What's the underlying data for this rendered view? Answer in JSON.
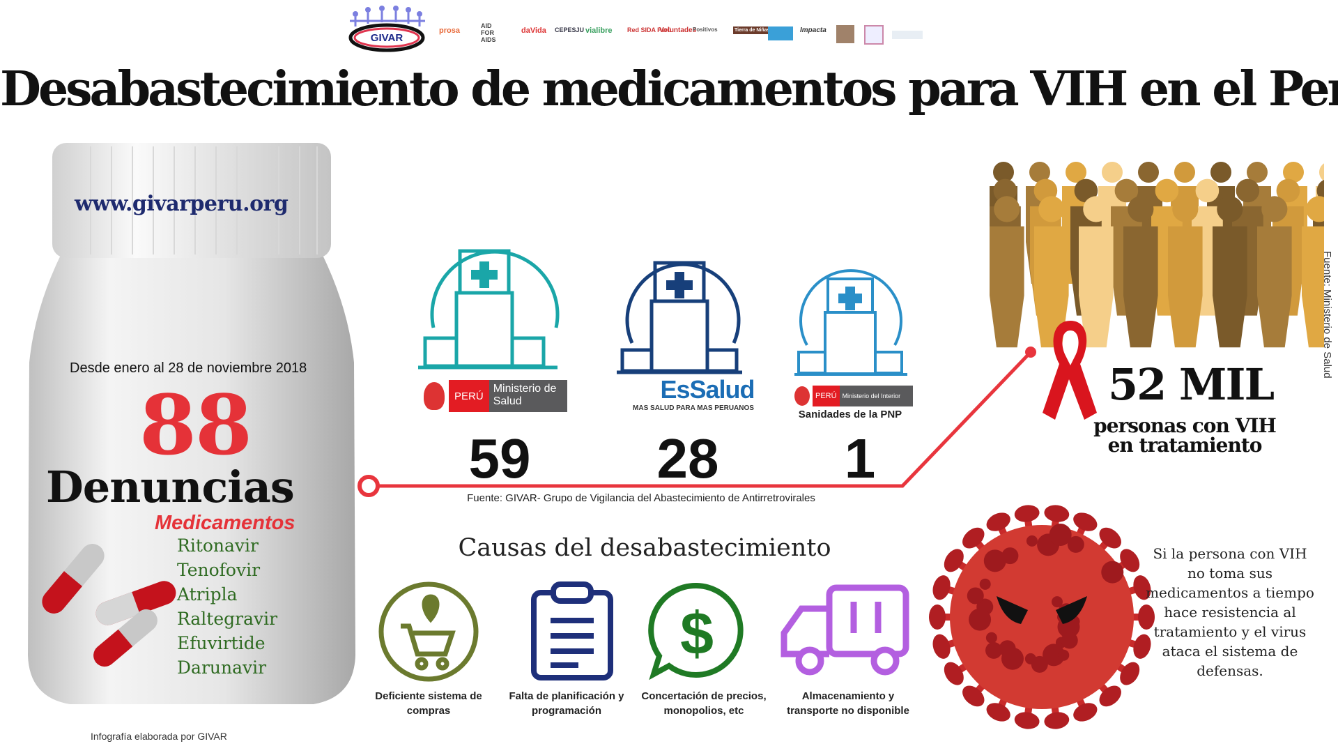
{
  "header": {
    "logo": "GIVAR",
    "partners": [
      "prosa",
      "AID FOR AIDS",
      "daVida",
      "CEPESJU",
      "vialibre",
      "Red SIDA Perú",
      "Voluntades",
      "Positivos",
      "Tierra de Niñas",
      "",
      "Impacta",
      "",
      "",
      ""
    ],
    "title": "Desabastecimiento de medicamentos para VIH en el Perú"
  },
  "bottle": {
    "url": "www.givarperu.org",
    "period": "Desde enero al 28  de noviembre  2018",
    "count": "88",
    "count_label": "Denuncias",
    "meds_heading": "Medicamentos",
    "meds": [
      "Ritonavir",
      "Tenofovir",
      "Atripla",
      "Raltegravir",
      "Efuvirtide",
      "Darunavir"
    ]
  },
  "institutions": [
    {
      "peru": "PERÚ",
      "name": "Ministerio de Salud",
      "value": "59",
      "color": "#1aa6a8"
    },
    {
      "name": "EsSalud",
      "tagline": "MAS SALUD PARA MAS PERUANOS",
      "value": "28",
      "color": "#173f7a"
    },
    {
      "peru": "PERÚ",
      "name": "Ministerio del Interior",
      "caption": "Sanidades de la PNP",
      "value": "1",
      "color": "#2a8fc8"
    }
  ],
  "source_givar": "Fuente: GIVAR- Grupo de Vigilancia del Abastecimiento de Antirretrovirales",
  "people": {
    "value": "52 MIL",
    "label_line1": "personas con VIH",
    "label_line2": "en tratamiento",
    "source": "Fuente: Ministerio de Salud"
  },
  "causes": {
    "heading": "Causas del desabastecimiento",
    "items": [
      {
        "icon": "shopping-cart-location-icon",
        "label": "Deficiente sistema de compras",
        "color": "#6b7a2e"
      },
      {
        "icon": "clipboard-icon",
        "label": "Falta de planificación y programación",
        "color": "#1e2f7a"
      },
      {
        "icon": "dollar-chat-icon",
        "label": "Concertación de precios, monopolios, etc",
        "color": "#1f7a24"
      },
      {
        "icon": "truck-icon",
        "label": "Almacenamiento y transporte  no disponible",
        "color": "#b35fe0"
      }
    ]
  },
  "warning": "Si la persona con VIH no toma sus medicamentos a tiempo hace resistencia al tratamiento y el virus ataca el sistema de defensas.",
  "credit": "Infografía elaborada por GIVAR",
  "colors": {
    "accent_red": "#e53238",
    "line_red": "#e8353d"
  }
}
